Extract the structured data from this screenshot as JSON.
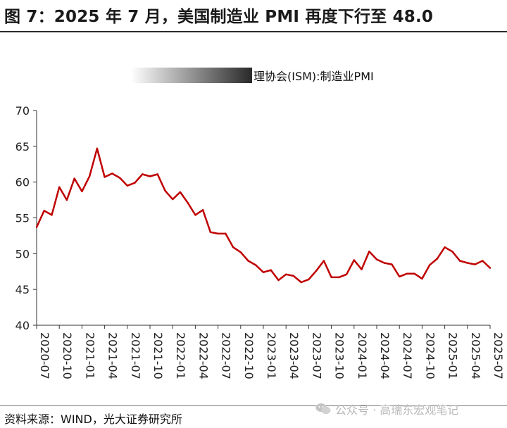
{
  "title": "图 7：2025 年 7 月，美国制造业 PMI 再度下行至 48.0",
  "source": "资料来源：WIND，光大证券研究所",
  "watermark": {
    "icon": "wechat-icon",
    "text": "公众号 · 高瑞东宏观笔记"
  },
  "chart_data": {
    "type": "line",
    "ylim": [
      40,
      70
    ],
    "yticks": [
      40,
      45,
      50,
      55,
      60,
      65,
      70
    ],
    "xticks": [
      "2020-07",
      "2020-10",
      "2021-01",
      "2021-04",
      "2021-07",
      "2021-10",
      "2022-01",
      "2022-04",
      "2022-07",
      "2022-10",
      "2023-01",
      "2023-04",
      "2023-07",
      "2023-10",
      "2024-01",
      "2024-04",
      "2024-07",
      "2024-10",
      "2025-01",
      "2025-04",
      "2025-07"
    ],
    "legend_position": "top-right",
    "grid": false,
    "series": [
      {
        "name": "理协会(ISM):制造业PMI",
        "color": "#c00000",
        "x": [
          "2020-07",
          "2020-08",
          "2020-09",
          "2020-10",
          "2020-11",
          "2020-12",
          "2021-01",
          "2021-02",
          "2021-03",
          "2021-04",
          "2021-05",
          "2021-06",
          "2021-07",
          "2021-08",
          "2021-09",
          "2021-10",
          "2021-11",
          "2021-12",
          "2022-01",
          "2022-02",
          "2022-03",
          "2022-04",
          "2022-05",
          "2022-06",
          "2022-07",
          "2022-08",
          "2022-09",
          "2022-10",
          "2022-11",
          "2022-12",
          "2023-01",
          "2023-02",
          "2023-03",
          "2023-04",
          "2023-05",
          "2023-06",
          "2023-07",
          "2023-08",
          "2023-09",
          "2023-10",
          "2023-11",
          "2023-12",
          "2024-01",
          "2024-02",
          "2024-03",
          "2024-04",
          "2024-05",
          "2024-06",
          "2024-07",
          "2024-08",
          "2024-09",
          "2024-10",
          "2024-11",
          "2024-12",
          "2025-01",
          "2025-02",
          "2025-03",
          "2025-04",
          "2025-05",
          "2025-06",
          "2025-07"
        ],
        "values": [
          53.7,
          56.0,
          55.4,
          59.3,
          57.5,
          60.5,
          58.7,
          60.8,
          64.7,
          60.7,
          61.2,
          60.6,
          59.5,
          59.9,
          61.1,
          60.8,
          61.1,
          58.8,
          57.6,
          58.6,
          57.1,
          55.4,
          56.1,
          53.0,
          52.8,
          52.8,
          50.9,
          50.2,
          49.0,
          48.4,
          47.4,
          47.7,
          46.3,
          47.1,
          46.9,
          46.0,
          46.4,
          47.6,
          49.0,
          46.7,
          46.7,
          47.1,
          49.1,
          47.8,
          50.3,
          49.2,
          48.7,
          48.5,
          46.8,
          47.2,
          47.2,
          46.5,
          48.4,
          49.3,
          50.9,
          50.3,
          49.0,
          48.7,
          48.5,
          49.0,
          48.0
        ]
      }
    ]
  }
}
